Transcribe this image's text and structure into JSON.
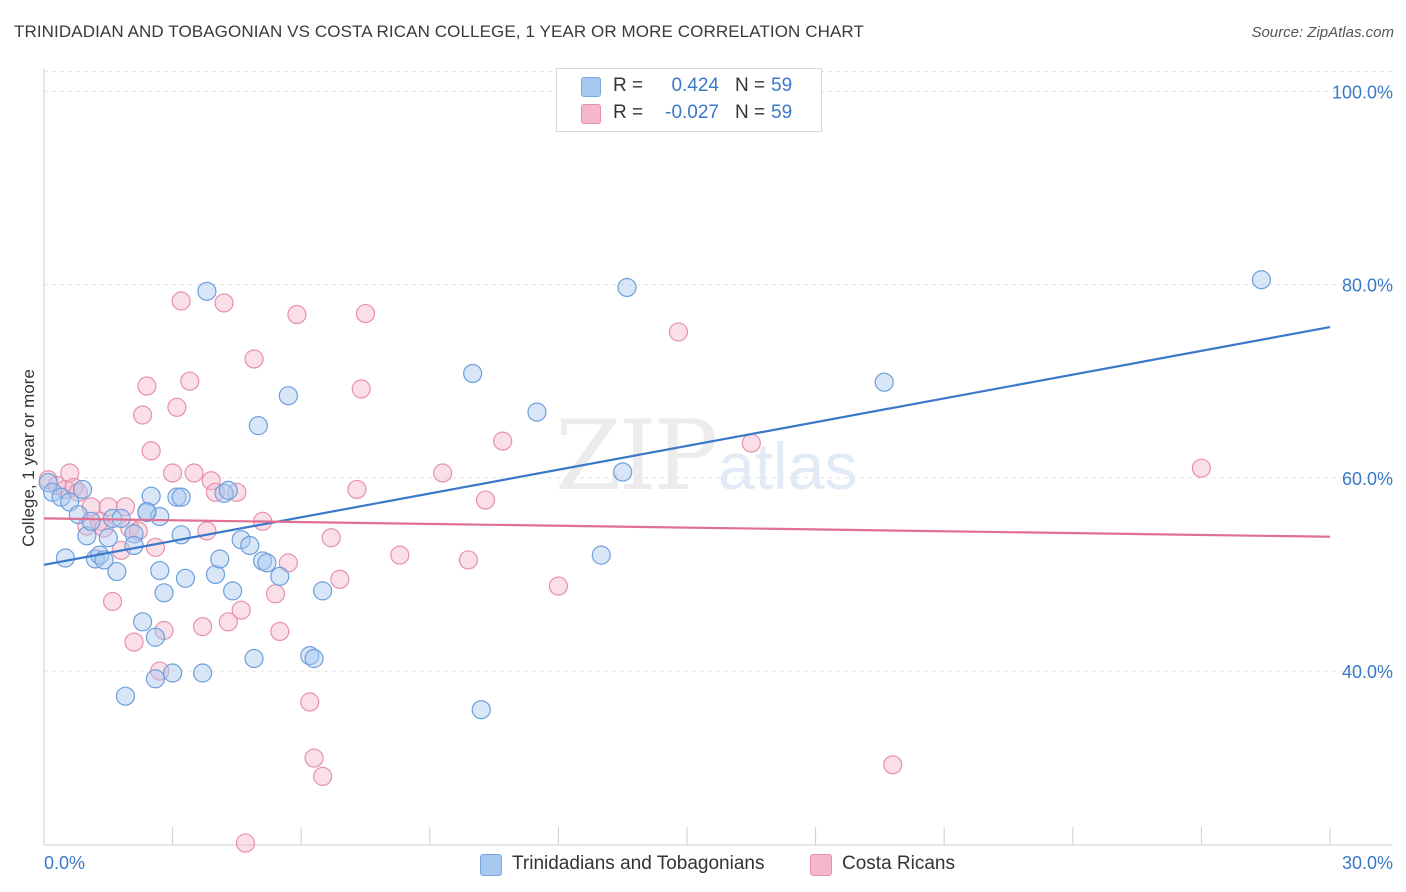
{
  "header": {
    "title": "TRINIDADIAN AND TOBAGONIAN VS COSTA RICAN COLLEGE, 1 YEAR OR MORE CORRELATION CHART",
    "source": "Source: ZipAtlas.com"
  },
  "watermark": {
    "zip": "ZIP",
    "atlas": "atlas"
  },
  "legend": {
    "rows": [
      {
        "r_label": "R =",
        "r_value": "0.424",
        "n_label": "N =",
        "n_value": "59",
        "color": "#a9c8f0"
      },
      {
        "r_label": "R =",
        "r_value": "-0.027",
        "n_label": "N =",
        "n_value": "59",
        "color": "#f5b8cb"
      }
    ]
  },
  "bottom_legend": {
    "items": [
      {
        "label": "Trinidadians and Tobagonians",
        "color": "#a9c8f0"
      },
      {
        "label": "Costa Ricans",
        "color": "#f5b8cb"
      }
    ]
  },
  "chart_data": {
    "type": "scatter",
    "title": "TRINIDADIAN AND TOBAGONIAN VS COSTA RICAN COLLEGE, 1 YEAR OR MORE CORRELATION CHART",
    "xlabel": "",
    "ylabel": "College, 1 year or more",
    "xlim": [
      0,
      30
    ],
    "ylim": [
      22,
      102
    ],
    "x_tick_labels": [
      "0.0%",
      "30.0%"
    ],
    "y_ticks": [
      40,
      60,
      80,
      100
    ],
    "y_tick_labels": [
      "40.0%",
      "60.0%",
      "80.0%",
      "100.0%"
    ],
    "grid": true,
    "legend_position": "top-center",
    "colors": {
      "blue": "#3a78c9",
      "blue_fill": "#a9c8f0",
      "pink": "#e0708f",
      "pink_fill": "#f5b8cb"
    },
    "series": [
      {
        "name": "Trinidadians and Tobagonians",
        "color": "#3a78c9",
        "trend": {
          "x": [
            0,
            30
          ],
          "y": [
            51.0,
            75.6
          ]
        },
        "points": [
          [
            0.1,
            59.5
          ],
          [
            0.2,
            58.5
          ],
          [
            0.4,
            58.0
          ],
          [
            0.5,
            51.7
          ],
          [
            0.6,
            57.5
          ],
          [
            0.8,
            56.2
          ],
          [
            0.9,
            58.8
          ],
          [
            1.0,
            54.0
          ],
          [
            1.1,
            55.5
          ],
          [
            1.2,
            51.6
          ],
          [
            1.3,
            52.0
          ],
          [
            1.4,
            51.5
          ],
          [
            1.5,
            53.8
          ],
          [
            1.6,
            55.8
          ],
          [
            1.7,
            50.3
          ],
          [
            1.8,
            55.8
          ],
          [
            1.9,
            37.4
          ],
          [
            2.1,
            54.2
          ],
          [
            2.1,
            53.0
          ],
          [
            2.3,
            45.1
          ],
          [
            2.4,
            56.4
          ],
          [
            2.5,
            58.1
          ],
          [
            2.6,
            39.2
          ],
          [
            2.6,
            43.5
          ],
          [
            2.7,
            56.0
          ],
          [
            2.7,
            50.4
          ],
          [
            2.8,
            48.1
          ],
          [
            3.0,
            39.8
          ],
          [
            3.1,
            58.0
          ],
          [
            3.2,
            58.0
          ],
          [
            3.2,
            54.1
          ],
          [
            3.3,
            49.6
          ],
          [
            3.7,
            39.8
          ],
          [
            3.8,
            79.3
          ],
          [
            4.0,
            50.0
          ],
          [
            4.1,
            51.6
          ],
          [
            4.2,
            58.4
          ],
          [
            4.3,
            58.7
          ],
          [
            4.4,
            48.3
          ],
          [
            4.6,
            53.6
          ],
          [
            4.8,
            53.0
          ],
          [
            4.9,
            41.3
          ],
          [
            5.0,
            65.4
          ],
          [
            5.1,
            51.4
          ],
          [
            5.5,
            49.8
          ],
          [
            5.7,
            68.5
          ],
          [
            6.2,
            41.6
          ],
          [
            6.3,
            41.3
          ],
          [
            6.5,
            48.3
          ],
          [
            10.0,
            70.8
          ],
          [
            10.2,
            36.0
          ],
          [
            11.5,
            66.8
          ],
          [
            13.0,
            52.0
          ],
          [
            13.5,
            60.6
          ],
          [
            13.6,
            79.7
          ],
          [
            19.6,
            69.9
          ],
          [
            28.4,
            80.5
          ],
          [
            2.4,
            56.5
          ],
          [
            5.2,
            51.2
          ]
        ]
      },
      {
        "name": "Costa Ricans",
        "color": "#e0708f",
        "trend": {
          "x": [
            0,
            30
          ],
          "y": [
            55.8,
            53.9
          ]
        },
        "points": [
          [
            0.1,
            59.8
          ],
          [
            0.3,
            59.2
          ],
          [
            0.5,
            58.8
          ],
          [
            0.6,
            60.5
          ],
          [
            0.7,
            59.0
          ],
          [
            0.8,
            58.5
          ],
          [
            1.0,
            55.0
          ],
          [
            1.1,
            57.0
          ],
          [
            1.3,
            55.5
          ],
          [
            1.4,
            54.8
          ],
          [
            1.5,
            57.0
          ],
          [
            1.6,
            47.2
          ],
          [
            1.8,
            52.5
          ],
          [
            1.9,
            57.0
          ],
          [
            2.0,
            54.8
          ],
          [
            2.1,
            43.0
          ],
          [
            2.2,
            54.5
          ],
          [
            2.3,
            66.5
          ],
          [
            2.4,
            69.5
          ],
          [
            2.5,
            62.8
          ],
          [
            2.6,
            52.8
          ],
          [
            2.7,
            40.0
          ],
          [
            2.8,
            44.2
          ],
          [
            3.0,
            60.5
          ],
          [
            3.1,
            67.3
          ],
          [
            3.2,
            78.3
          ],
          [
            3.4,
            70.0
          ],
          [
            3.5,
            60.5
          ],
          [
            3.7,
            44.6
          ],
          [
            3.8,
            54.5
          ],
          [
            3.9,
            59.7
          ],
          [
            4.0,
            58.5
          ],
          [
            4.2,
            78.1
          ],
          [
            4.3,
            45.1
          ],
          [
            4.5,
            58.5
          ],
          [
            4.6,
            46.3
          ],
          [
            4.7,
            22.2
          ],
          [
            4.9,
            72.3
          ],
          [
            5.1,
            55.5
          ],
          [
            5.4,
            48.0
          ],
          [
            5.5,
            44.1
          ],
          [
            5.7,
            51.2
          ],
          [
            5.9,
            76.9
          ],
          [
            6.2,
            36.8
          ],
          [
            6.3,
            31.0
          ],
          [
            6.5,
            29.1
          ],
          [
            6.7,
            53.8
          ],
          [
            6.9,
            49.5
          ],
          [
            7.5,
            77.0
          ],
          [
            7.3,
            58.8
          ],
          [
            7.4,
            69.2
          ],
          [
            8.3,
            52.0
          ],
          [
            9.3,
            60.5
          ],
          [
            9.9,
            51.5
          ],
          [
            10.3,
            57.7
          ],
          [
            10.7,
            63.8
          ],
          [
            12.0,
            48.8
          ],
          [
            14.8,
            75.1
          ],
          [
            19.8,
            30.3
          ]
        ],
        "extra_points": [
          [
            16.5,
            63.6
          ],
          [
            27.0,
            61.0
          ]
        ]
      }
    ]
  }
}
